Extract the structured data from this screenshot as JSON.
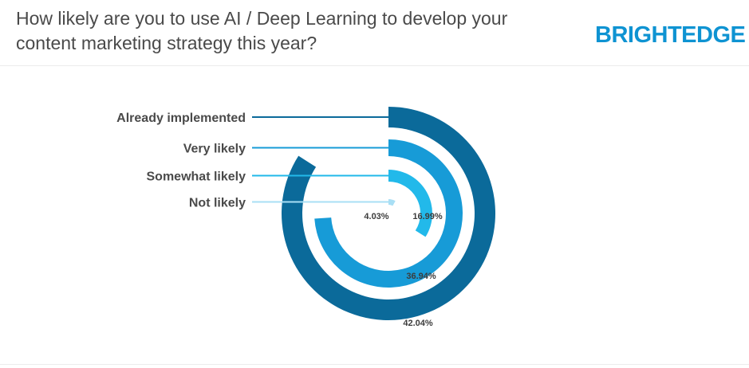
{
  "header": {
    "title": "How likely are you to use AI / Deep Learning to develop your content marketing strategy this year?",
    "logo": "BRIGHTEDGE"
  },
  "colors": {
    "logo": "#0e93d2",
    "series": [
      "#0b6a9a",
      "#179bd7",
      "#22b9ea",
      "#a9dff5"
    ]
  },
  "chart_data": {
    "type": "radial-bar",
    "title": "How likely are you to use AI / Deep Learning to develop your content marketing strategy this year?",
    "unit": "%",
    "max_value": 50,
    "categories": [
      "Already implemented",
      "Very likely",
      "Somewhat likely",
      "Not likely"
    ],
    "values": [
      42.04,
      36.94,
      16.99,
      4.03
    ],
    "value_labels": [
      "42.04%",
      "36.94%",
      "16.99%",
      "4.03%"
    ]
  }
}
